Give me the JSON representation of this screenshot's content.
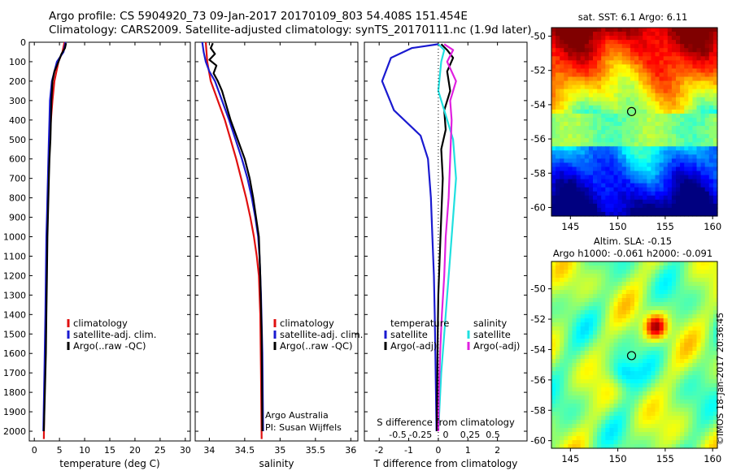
{
  "header": {
    "line1": "Argo profile: CS 5904920_73 09-Jan-2017 20170109_803 54.408S 151.454E",
    "line2": "Climatology: CARS2009. Satellite-adjusted climatology: synTS_20170111.nc (1.9d later)"
  },
  "stamp": "©IMOS 18-Jan-2017 20:36:45",
  "colors": {
    "climatology": "#e01010",
    "satellite": "#1a1ad0",
    "argo": "#000000",
    "sat_salinity": "#20e0e0",
    "argo_salinity": "#e020e0"
  },
  "chart_data": [
    {
      "type": "line",
      "panel": "temperature",
      "xlabel": "temperature (deg C)",
      "ylabel": "",
      "xlim": [
        -1,
        31
      ],
      "ylim": [
        2050,
        0
      ],
      "xticks": [
        "0",
        "5",
        "10",
        "15",
        "20",
        "25",
        "30"
      ],
      "yticks": [
        "0",
        "100",
        "200",
        "300",
        "400",
        "500",
        "600",
        "700",
        "800",
        "900",
        "1000",
        "1100",
        "1200",
        "1300",
        "1400",
        "1500",
        "1600",
        "1700",
        "1800",
        "1900",
        "2000"
      ],
      "legend": [
        "climatology",
        "satellite-adj. clim.",
        "Argo(..raw -QC)"
      ],
      "series": [
        {
          "name": "climatology",
          "color": "#e01010",
          "x": [
            6.0,
            5.6,
            4.8,
            4.0,
            3.6,
            3.3,
            3.1,
            2.9,
            2.8,
            2.7,
            2.6,
            2.5,
            2.4,
            2.3,
            2.2,
            2.0,
            1.9
          ],
          "y": [
            0,
            50,
            100,
            200,
            300,
            400,
            500,
            600,
            700,
            800,
            900,
            1000,
            1200,
            1400,
            1600,
            1800,
            2040
          ]
        },
        {
          "name": "satellite-adj. clim.",
          "color": "#1a1ad0",
          "x": [
            6.2,
            5.8,
            4.5,
            3.5,
            3.1,
            3.0,
            2.9,
            2.8,
            2.7,
            2.6,
            2.5,
            2.4,
            2.3,
            2.2,
            2.0,
            1.8
          ],
          "y": [
            0,
            50,
            100,
            200,
            300,
            400,
            500,
            600,
            700,
            800,
            900,
            1000,
            1200,
            1400,
            1700,
            2000
          ]
        },
        {
          "name": "Argo(..raw -QC)",
          "color": "#000000",
          "x": [
            6.3,
            6.1,
            5.4,
            4.8,
            4.0,
            3.6,
            3.4,
            3.3,
            3.2,
            3.0,
            2.9,
            2.8,
            2.7,
            2.6,
            2.5,
            2.4,
            2.3,
            2.1,
            1.9
          ],
          "y": [
            5,
            30,
            60,
            100,
            150,
            200,
            300,
            400,
            500,
            600,
            700,
            800,
            900,
            1000,
            1200,
            1400,
            1600,
            1800,
            2000
          ]
        }
      ]
    },
    {
      "type": "line",
      "panel": "salinity",
      "xlabel": "salinity",
      "xlim": [
        33.8,
        36.1
      ],
      "ylim": [
        2050,
        0
      ],
      "xticks": [
        "34",
        "34.5",
        "35",
        "35.5",
        "36"
      ],
      "legend": [
        "climatology",
        "satellite-adj. clim.",
        "Argo(..raw -QC)"
      ],
      "annotation": [
        "Argo Australia",
        "PI: Susan Wijffels"
      ],
      "series": [
        {
          "name": "climatology",
          "color": "#e01010",
          "x": [
            33.95,
            33.97,
            34.02,
            34.12,
            34.22,
            34.3,
            34.38,
            34.45,
            34.52,
            34.58,
            34.63,
            34.67,
            34.7,
            34.72,
            34.73,
            34.74
          ],
          "y": [
            0,
            100,
            200,
            300,
            400,
            500,
            600,
            700,
            800,
            900,
            1000,
            1100,
            1200,
            1400,
            1700,
            2040
          ]
        },
        {
          "name": "satellite-adj. clim.",
          "color": "#1a1ad0",
          "x": [
            33.9,
            33.92,
            33.95,
            34.0,
            34.08,
            34.18,
            34.28,
            34.37,
            34.46,
            34.54,
            34.6,
            34.65,
            34.69,
            34.71,
            34.73,
            34.75,
            34.76
          ],
          "y": [
            0,
            50,
            100,
            150,
            200,
            300,
            400,
            500,
            600,
            700,
            800,
            900,
            1000,
            1100,
            1300,
            1600,
            2000
          ]
        },
        {
          "name": "Argo(..raw -QC)",
          "color": "#000000",
          "x": [
            34.05,
            34.02,
            34.08,
            34.0,
            34.1,
            34.06,
            34.12,
            34.18,
            34.22,
            34.3,
            34.4,
            34.5,
            34.57,
            34.62,
            34.66,
            34.7,
            34.72,
            34.74,
            34.75
          ],
          "y": [
            5,
            30,
            60,
            90,
            120,
            160,
            200,
            250,
            300,
            400,
            500,
            600,
            700,
            800,
            900,
            1000,
            1200,
            1500,
            2000
          ]
        }
      ]
    },
    {
      "type": "line",
      "panel": "difference",
      "xlabel": "T difference from climatology",
      "xlabel2": "S difference from climatology",
      "xlim": [
        -2.5,
        3.0
      ],
      "ylim": [
        2050,
        0
      ],
      "xticks": [
        "-2",
        "-1",
        "0",
        "1",
        "2"
      ],
      "xticks_top": [
        "-0.5",
        "-0.25",
        "0",
        "0.25",
        "0.5"
      ],
      "legend_temperature": [
        "temperature",
        "satellite",
        "Argo(-adj)"
      ],
      "legend_salinity": [
        "salinity",
        "satellite",
        "Argo(-adj)"
      ],
      "series": [
        {
          "name": "satellite (T)",
          "color": "#1a1ad0",
          "x": [
            0.0,
            -0.9,
            -1.6,
            -1.9,
            -1.5,
            -0.6,
            -0.35,
            -0.25,
            -0.2,
            -0.15,
            -0.12,
            -0.1,
            -0.08,
            -0.06
          ],
          "y": [
            10,
            30,
            80,
            200,
            350,
            480,
            600,
            800,
            1000,
            1200,
            1400,
            1600,
            1800,
            2000
          ]
        },
        {
          "name": "Argo(-adj) (T)",
          "color": "#000000",
          "x": [
            0.1,
            0.3,
            0.5,
            0.3,
            0.4,
            0.2,
            0.25,
            0.1,
            0.15,
            0.1,
            0.05,
            0.0,
            -0.02,
            -0.04,
            -0.05
          ],
          "y": [
            10,
            40,
            80,
            150,
            250,
            350,
            450,
            550,
            700,
            900,
            1100,
            1300,
            1500,
            1800,
            2000
          ]
        },
        {
          "name": "satellite (S)",
          "color": "#20e0e0",
          "x": [
            0.0,
            0.2,
            0.1,
            0.0,
            0.2,
            0.5,
            0.6,
            0.5,
            0.4,
            0.3,
            0.2,
            0.1,
            0.05,
            0.0
          ],
          "y": [
            10,
            40,
            100,
            250,
            350,
            500,
            700,
            900,
            1100,
            1300,
            1500,
            1700,
            1850,
            2000
          ]
        },
        {
          "name": "Argo(-adj) (S)",
          "color": "#e020e0",
          "x": [
            0.2,
            0.5,
            0.3,
            0.6,
            0.4,
            0.45,
            0.4,
            0.35,
            0.25,
            0.2,
            0.12,
            0.06,
            0.02,
            0.0
          ],
          "y": [
            10,
            40,
            100,
            200,
            300,
            400,
            600,
            800,
            1000,
            1200,
            1400,
            1600,
            1800,
            2000
          ]
        }
      ]
    },
    {
      "type": "heatmap",
      "panel": "sst-map",
      "title": "sat. SST: 6.1 Argo: 6.11",
      "xticks": [
        "145",
        "150",
        "155",
        "160"
      ],
      "yticks": [
        "-50",
        "-52",
        "-54",
        "-56",
        "-58",
        "-60"
      ],
      "xlim": [
        143,
        160.5
      ],
      "ylim": [
        -60.5,
        -49.5
      ],
      "marker": {
        "lon": 151.45,
        "lat": -54.4
      }
    },
    {
      "type": "heatmap",
      "panel": "sla-map",
      "title": "Altim. SLA: -0.15",
      "subtitle": "Argo h1000: -0.061 h2000: -0.091",
      "xticks": [
        "145",
        "150",
        "155",
        "160"
      ],
      "yticks": [
        "-50",
        "-52",
        "-54",
        "-56",
        "-58",
        "-60"
      ],
      "xlim": [
        143,
        160.5
      ],
      "ylim": [
        -60.5,
        -48.2
      ],
      "marker": {
        "lon": 151.45,
        "lat": -54.4
      }
    }
  ]
}
